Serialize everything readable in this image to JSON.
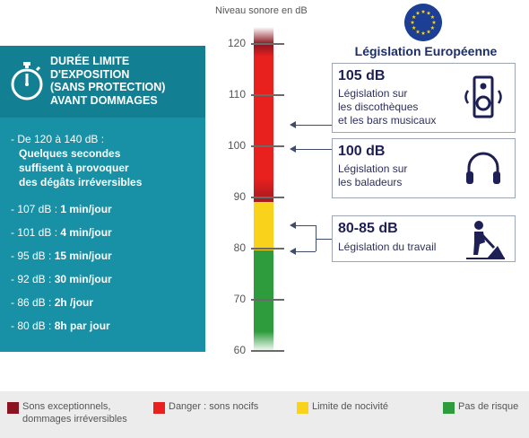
{
  "panel": {
    "title_lines": [
      "DURÉE LIMITE",
      "D'EXPOSITION",
      "(SANS PROTECTION)",
      "AVANT DOMMAGES"
    ],
    "first_item": {
      "prefix": "- De 120 à 140 dB :",
      "bold_lines": [
        "Quelques secondes",
        "suffisent à provoquer",
        "des dégâts irréversibles"
      ]
    },
    "items": [
      {
        "prefix": "- 107 dB : ",
        "bold": "1 min/jour"
      },
      {
        "prefix": "- 101 dB : ",
        "bold": "4 min/jour"
      },
      {
        "prefix": "- 95 dB : ",
        "bold": "15 min/jour"
      },
      {
        "prefix": "- 92 dB : ",
        "bold": "30 min/jour"
      },
      {
        "prefix": "- 86 dB : ",
        "bold": "2h /jour"
      },
      {
        "prefix": "- 80 dB : ",
        "bold": "8h par jour"
      }
    ]
  },
  "scale": {
    "label": "Niveau sonore en dB",
    "ticks": [
      "120",
      "110",
      "100",
      "90",
      "80",
      "70",
      "60"
    ]
  },
  "eu": {
    "title": "Législation Européenne",
    "boxes": [
      {
        "value": "105 dB",
        "lines": [
          "Législation sur",
          "les discothèques",
          "et les bars musicaux"
        ],
        "icon": "speaker-icon"
      },
      {
        "value": "100 dB",
        "lines": [
          "Législation sur",
          "les baladeurs"
        ],
        "icon": "headphones-icon"
      },
      {
        "value": "80-85 dB",
        "lines": [
          "Législation du travail"
        ],
        "icon": "worker-icon"
      }
    ]
  },
  "legend": [
    {
      "label_lines": [
        "Sons exceptionnels,",
        "dommages irréversibles"
      ],
      "color": "#8a1520"
    },
    {
      "label_lines": [
        "Danger : sons nocifs"
      ],
      "color": "#e8201e"
    },
    {
      "label_lines": [
        "Limite de nocivité"
      ],
      "color": "#f8d21b"
    },
    {
      "label_lines": [
        "Pas de risque"
      ],
      "color": "#2e9c3d"
    }
  ],
  "colors": {
    "panel": "#1890a5",
    "dark_red": "#8a1520",
    "red": "#e8201e",
    "yellow": "#f8d21b",
    "green": "#2e9c3d",
    "navy": "#1c2d6b"
  }
}
